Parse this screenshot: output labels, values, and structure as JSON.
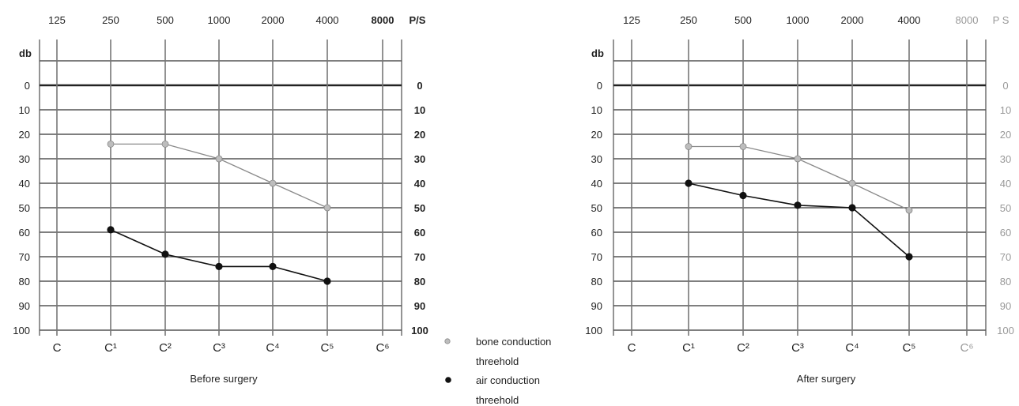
{
  "chart_data": [
    {
      "type": "line",
      "title": "Before surgery",
      "x_top_labels": [
        "125",
        "250",
        "500",
        "1000",
        "2000",
        "4000",
        "8000"
      ],
      "x_top_unit": "P/S",
      "x_bottom_labels": [
        "C",
        "C¹",
        "C²",
        "C³",
        "C⁴",
        "C⁵",
        "C⁶"
      ],
      "ylabel": "db",
      "y_ticks": [
        "0",
        "10",
        "20",
        "30",
        "40",
        "50",
        "60",
        "70",
        "80",
        "90",
        "100"
      ],
      "ylim": [
        -10,
        100
      ],
      "y_inverted": true,
      "grid": true,
      "categories": [
        "250",
        "500",
        "1000",
        "2000",
        "4000"
      ],
      "series": [
        {
          "name": "bone conduction threehold",
          "values": [
            24,
            24,
            30,
            40,
            50
          ]
        },
        {
          "name": "air conduction threehold",
          "values": [
            59,
            69,
            74,
            74,
            80
          ]
        }
      ]
    },
    {
      "type": "line",
      "title": "After surgery",
      "x_top_labels": [
        "125",
        "250",
        "500",
        "1000",
        "2000",
        "4000",
        "8000"
      ],
      "x_top_unit": "P S",
      "x_bottom_labels": [
        "C",
        "C¹",
        "C²",
        "C³",
        "C⁴",
        "C⁵",
        "C⁶"
      ],
      "ylabel": "db",
      "y_ticks": [
        "0",
        "10",
        "20",
        "30",
        "40",
        "50",
        "60",
        "70",
        "80",
        "90",
        "100"
      ],
      "ylim": [
        -10,
        100
      ],
      "y_inverted": true,
      "grid": true,
      "categories": [
        "250",
        "500",
        "1000",
        "2000",
        "4000"
      ],
      "series": [
        {
          "name": "bone conduction threehold",
          "values": [
            25,
            25,
            30,
            40,
            51
          ]
        },
        {
          "name": "air conduction threehold",
          "values": [
            40,
            45,
            49,
            50,
            70
          ]
        }
      ]
    }
  ],
  "legend": {
    "bone_label_1": "bone conduction",
    "bone_label_2": "threehold",
    "air_label_1": "air conduction",
    "air_label_2": "threehold"
  },
  "colors": {
    "bone": "#8a8a8a",
    "air": "#111111",
    "grid": "#555555"
  }
}
